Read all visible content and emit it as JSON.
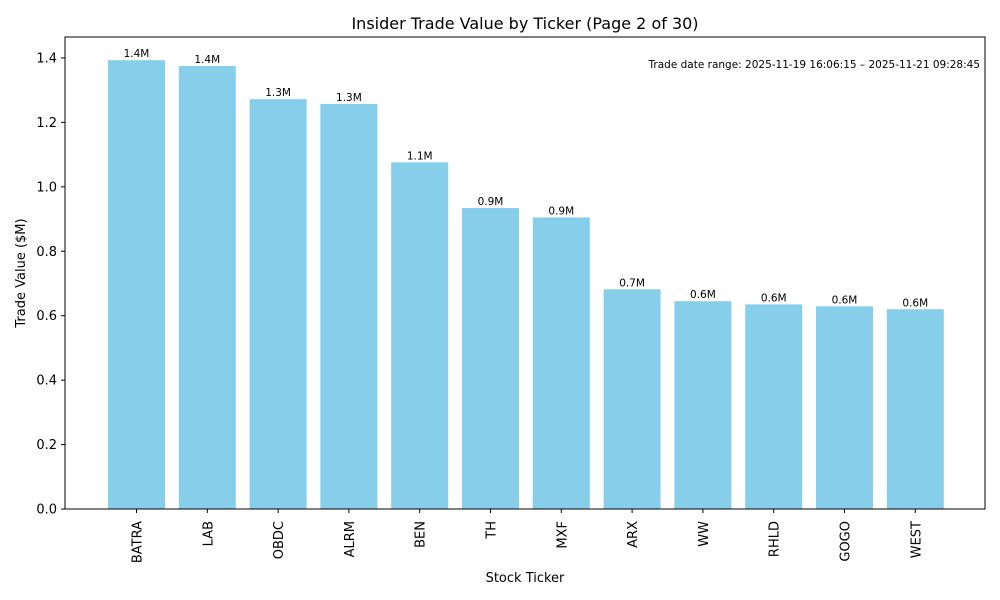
{
  "chart_data": {
    "type": "bar",
    "title": "Insider Trade Value by Ticker (Page 2 of 30)",
    "xlabel": "Stock Ticker",
    "ylabel": "Trade Value ($M)",
    "ylim": [
      0,
      1.465
    ],
    "yticks": [
      0.0,
      0.2,
      0.4,
      0.6,
      0.8,
      1.0,
      1.2,
      1.4
    ],
    "grid": false,
    "bar_color": "#87CEEB",
    "categories": [
      "BATRA",
      "LAB",
      "OBDC",
      "ALRM",
      "BEN",
      "TH",
      "MXF",
      "ARX",
      "WW",
      "RHLD",
      "GOGO",
      "WEST"
    ],
    "values": [
      1.393,
      1.375,
      1.272,
      1.257,
      1.076,
      0.934,
      0.905,
      0.682,
      0.645,
      0.635,
      0.629,
      0.62
    ],
    "value_labels": [
      "1.4M",
      "1.4M",
      "1.3M",
      "1.3M",
      "1.1M",
      "0.9M",
      "0.9M",
      "0.7M",
      "0.6M",
      "0.6M",
      "0.6M",
      "0.6M"
    ],
    "annotation": "Trade date range: 2025-11-19 16:06:15 – 2025-11-21 09:28:45"
  }
}
